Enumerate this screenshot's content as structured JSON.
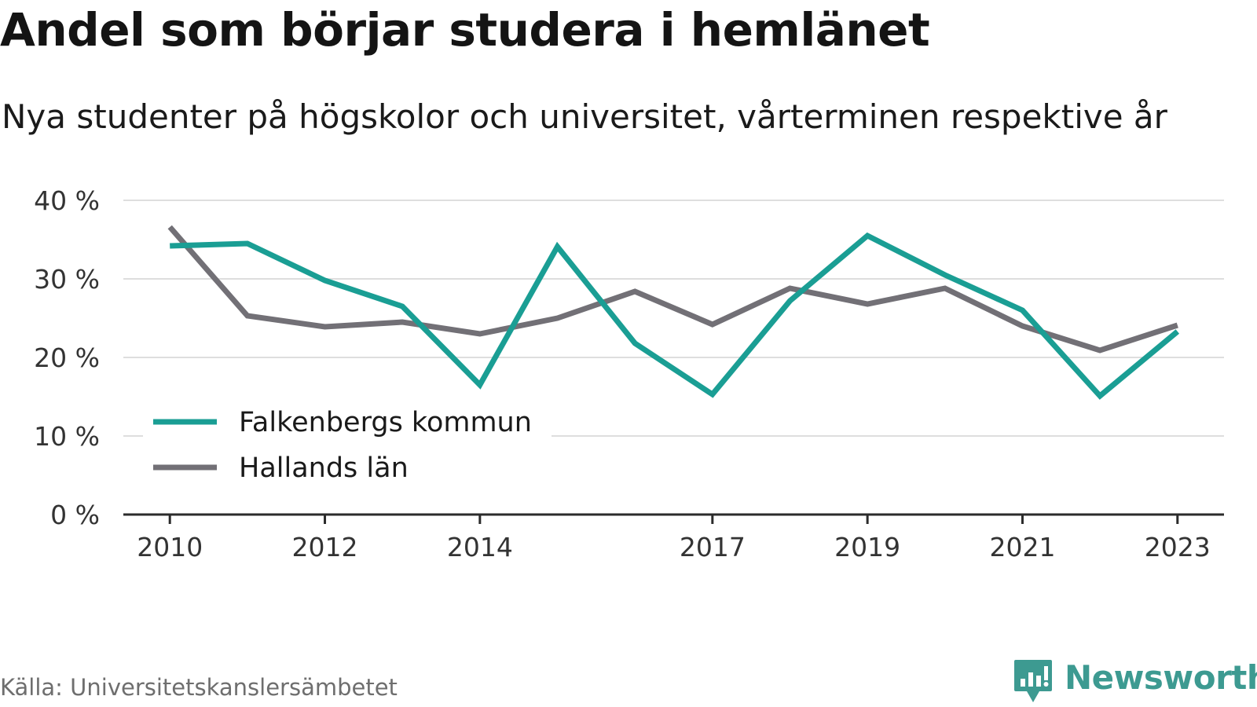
{
  "title": "Andel som börjar studera i hemlänet",
  "subtitle": "Nya studenter på högskolor och universitet, vårterminen respektive år",
  "source": "Källa: Universitetskanslersämbetet",
  "brand": {
    "name": "Newsworthy",
    "color": "#3d9a91"
  },
  "chart_data": {
    "type": "line",
    "x": [
      2010,
      2011,
      2012,
      2013,
      2014,
      2015,
      2016,
      2017,
      2018,
      2019,
      2020,
      2021,
      2022,
      2023
    ],
    "x_ticks": [
      2010,
      2012,
      2014,
      2017,
      2019,
      2021,
      2023
    ],
    "x_tick_labels": [
      "2010",
      "2012",
      "2014",
      "2017",
      "2019",
      "2021",
      "2023"
    ],
    "y_ticks": [
      0,
      10,
      20,
      30,
      40
    ],
    "y_tick_labels": [
      "0 %",
      "10 %",
      "20 %",
      "30 %",
      "40 %"
    ],
    "ylim": [
      0,
      40
    ],
    "xlim": [
      2009.4,
      2023.6
    ],
    "grid": true,
    "legend_position": "bottom-left",
    "series": [
      {
        "name": "Falkenbergs kommun",
        "color": "#1a9e94",
        "values": [
          34.2,
          34.5,
          29.8,
          26.5,
          16.5,
          34.1,
          21.8,
          15.3,
          27.2,
          35.5,
          30.5,
          26.0,
          15.1,
          23.3
        ]
      },
      {
        "name": "Hallands län",
        "color": "#727076",
        "values": [
          36.6,
          25.3,
          23.9,
          24.5,
          23.0,
          25.0,
          28.4,
          24.2,
          28.8,
          26.8,
          28.8,
          24.0,
          20.9,
          24.1
        ]
      }
    ]
  }
}
